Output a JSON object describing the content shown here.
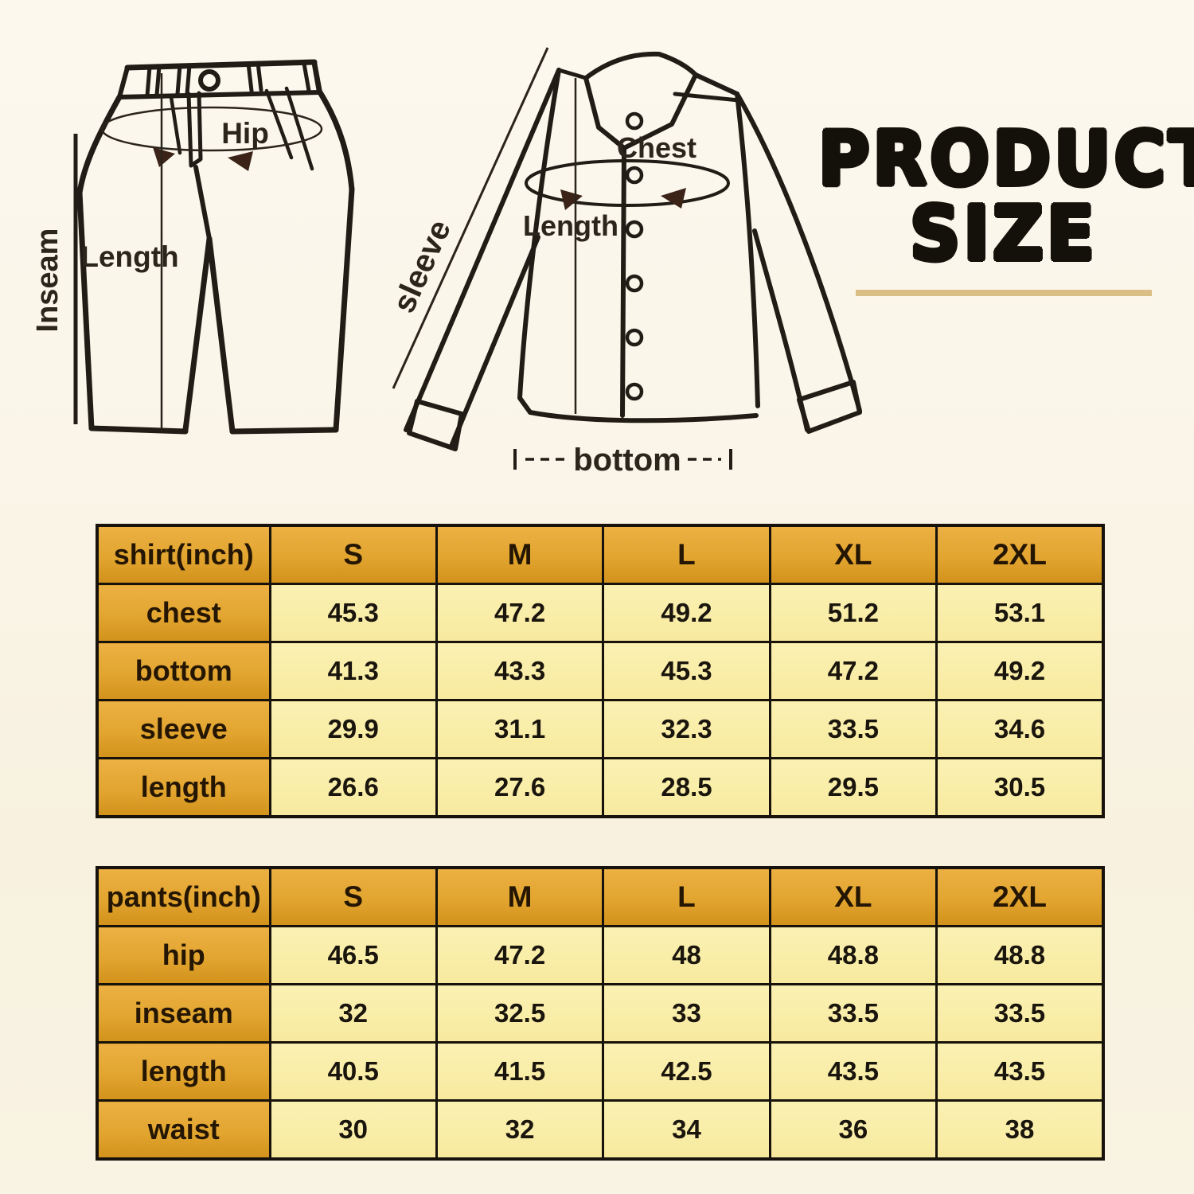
{
  "title": {
    "line1": "PRODUCT",
    "line2": "SIZE"
  },
  "diagrams": {
    "pants": {
      "hip": "Hip",
      "length": "Length",
      "inseam": "Inseam"
    },
    "shirt": {
      "sleeve": "sleeve",
      "chest": "Chest",
      "length": "Length",
      "bottom": "bottom"
    }
  },
  "colors": {
    "background": "#faf5e9",
    "table_header_gold": "#e2a52f",
    "table_cell_yellow": "#f9eda7",
    "grid_border": "#17130c",
    "title_text": "#14100a",
    "title_underline": "#d9bf85",
    "line_art": "#211c15"
  },
  "chart_data": [
    {
      "type": "table",
      "title": "shirt(inch)",
      "columns": [
        "S",
        "M",
        "L",
        "XL",
        "2XL"
      ],
      "rows": [
        {
          "label": "chest",
          "values": [
            "45.3",
            "47.2",
            "49.2",
            "51.2",
            "53.1"
          ]
        },
        {
          "label": "bottom",
          "values": [
            "41.3",
            "43.3",
            "45.3",
            "47.2",
            "49.2"
          ]
        },
        {
          "label": "sleeve",
          "values": [
            "29.9",
            "31.1",
            "32.3",
            "33.5",
            "34.6"
          ]
        },
        {
          "label": "length",
          "values": [
            "26.6",
            "27.6",
            "28.5",
            "29.5",
            "30.5"
          ]
        }
      ]
    },
    {
      "type": "table",
      "title": "pants(inch)",
      "columns": [
        "S",
        "M",
        "L",
        "XL",
        "2XL"
      ],
      "rows": [
        {
          "label": "hip",
          "values": [
            "46.5",
            "47.2",
            "48",
            "48.8",
            "48.8"
          ]
        },
        {
          "label": "inseam",
          "values": [
            "32",
            "32.5",
            "33",
            "33.5",
            "33.5"
          ]
        },
        {
          "label": "length",
          "values": [
            "40.5",
            "41.5",
            "42.5",
            "43.5",
            "43.5"
          ]
        },
        {
          "label": "waist",
          "values": [
            "30",
            "32",
            "34",
            "36",
            "38"
          ]
        }
      ]
    }
  ]
}
